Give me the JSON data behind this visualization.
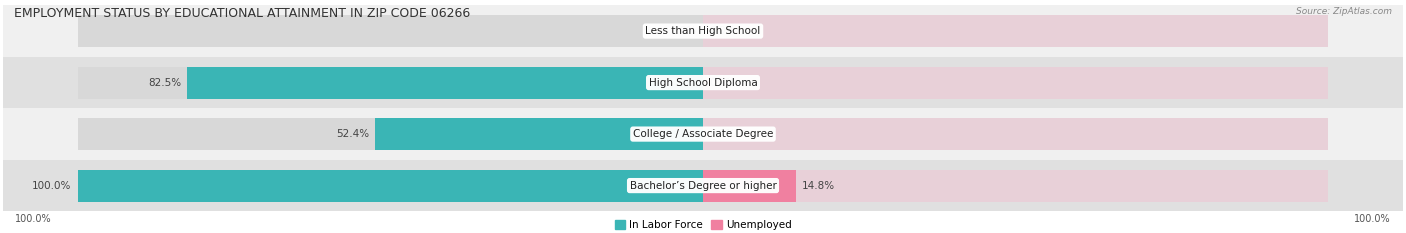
{
  "title": "EMPLOYMENT STATUS BY EDUCATIONAL ATTAINMENT IN ZIP CODE 06266",
  "source": "Source: ZipAtlas.com",
  "categories": [
    "Less than High School",
    "High School Diploma",
    "College / Associate Degree",
    "Bachelor’s Degree or higher"
  ],
  "labor_force": [
    0.0,
    82.5,
    52.4,
    100.0
  ],
  "unemployed": [
    0.0,
    0.0,
    0.0,
    14.8
  ],
  "labor_force_color": "#3ab5b5",
  "unemployed_color": "#f080a0",
  "bar_bg_color_left": "#d8d8d8",
  "bar_bg_color_right": "#e8d0d8",
  "row_bg_colors": [
    "#f0f0f0",
    "#e0e0e0",
    "#f0f0f0",
    "#e0e0e0"
  ],
  "title_fontsize": 9.0,
  "label_fontsize": 7.5,
  "tick_fontsize": 7.0,
  "cat_fontsize": 7.5,
  "max_value": 100.0,
  "fig_width": 14.06,
  "fig_height": 2.33,
  "legend_labels": [
    "In Labor Force",
    "Unemployed"
  ],
  "left_axis_label": "100.0%",
  "right_axis_label": "100.0%"
}
